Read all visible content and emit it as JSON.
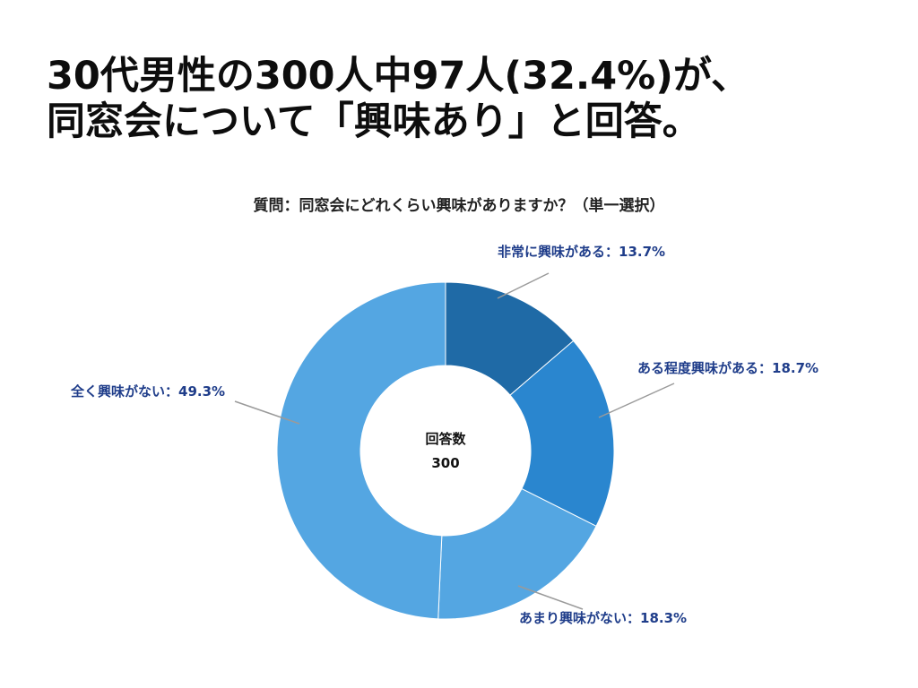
{
  "headline": {
    "line1": "30代男性の300人中97人(32.4%)が、",
    "line2": "同窓会について「興味あり」と回答。"
  },
  "chart_data": {
    "type": "pie",
    "title": "質問：同窓会にどれくらい興味がありますか？（単一選択）",
    "center_label": "回答数",
    "center_value": "300",
    "slices": [
      {
        "label": "非常に興味がある：13.7%",
        "value": 13.7,
        "color": "#1f6aa6"
      },
      {
        "label": "ある程度興味がある：18.7%",
        "value": 18.7,
        "color": "#2a86cf"
      },
      {
        "label": "あまり興味がない：18.3%",
        "value": 18.3,
        "color": "#54a6e2"
      },
      {
        "label": "全く興味がない：49.3%",
        "value": 49.3,
        "color": "#54a6e2"
      }
    ]
  }
}
